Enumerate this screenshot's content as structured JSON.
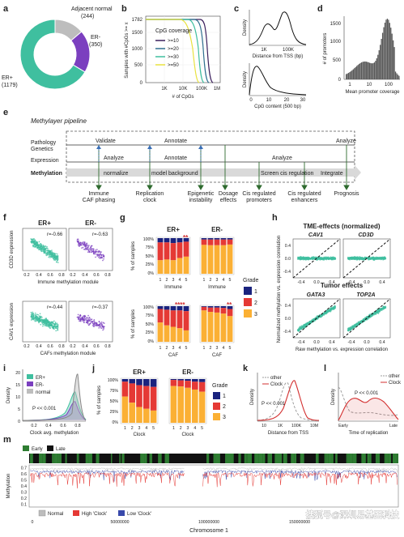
{
  "panels": {
    "a": {
      "letter": "a",
      "slices": [
        {
          "name": "Adjacent normal",
          "count": "(244)",
          "value": 244,
          "color": "#bdbdbd"
        },
        {
          "name": "ER-",
          "count": "(350)",
          "value": 350,
          "color": "#7b3fbf"
        },
        {
          "name": "ER+",
          "count": "(1179)",
          "value": 1179,
          "color": "#3fbf9f"
        }
      ]
    },
    "b": {
      "letter": "b",
      "ylabel": "Samples with #CpGs >= x",
      "xlabel": "# of CpGs",
      "yticks": [
        "1782",
        "1500",
        "1000",
        "500",
        "0"
      ],
      "xticks": [
        "1K",
        "10K",
        "100K",
        "1M"
      ],
      "legend_title": "CpG coverage",
      "legend": [
        {
          "label": ">=10",
          "color": "#3b1f5c"
        },
        {
          "label": ">=20",
          "color": "#2f6f8f"
        },
        {
          "label": ">=30",
          "color": "#3fbf9f"
        },
        {
          "label": ">=50",
          "color": "#e8e23f"
        }
      ]
    },
    "c": {
      "letter": "c",
      "top_xlabel": "Distance from TSS (bp)",
      "top_ylabel": "Density",
      "top_xticks": [
        "1K",
        "100K"
      ],
      "bottom_xlabel": "CpG content (500 bp)",
      "bottom_ylabel": "Density",
      "bottom_xticks": [
        "0",
        "10",
        "20",
        "30"
      ]
    },
    "d": {
      "letter": "d",
      "ylabel": "# of promoters",
      "xlabel": "Mean promoter coverage",
      "yticks": [
        "1500",
        "1000",
        "500",
        "0"
      ],
      "xticks": [
        "1",
        "10",
        "100"
      ]
    },
    "e": {
      "letter": "e",
      "title": "Methylayer pipeline",
      "rows": [
        "Pathology",
        "Genetics",
        "Expression",
        "Methylation"
      ],
      "top_labels": {
        "validate": "Validate",
        "annotate": "Annotate",
        "analyze": "Analyze"
      },
      "mid_labels": {
        "analyze": "Analyze",
        "annotate": "Annotate",
        "analyze2": "Analyze"
      },
      "bar_labels": [
        "normalize",
        "model background",
        "Screen cis regulation",
        "Integrate"
      ],
      "outputs": [
        "Immune\nCAF phasing",
        "Replication\nclock",
        "Epigenetic\ninstability",
        "Dosage\neffects",
        "Cis regulated\npromoters",
        "Cis regulated\nenhancers",
        "Prognosis"
      ]
    },
    "f": {
      "letter": "f",
      "col_titles": [
        "ER+",
        "ER-"
      ],
      "top_r": [
        "r=-0.66",
        "r=-0.63"
      ],
      "bottom_r": [
        "r=-0.44",
        "r=-0.37"
      ],
      "top_ylabel": "CD3D expression",
      "top_xlabel": "Immune methylation module",
      "bottom_ylabel": "CAV1 expression",
      "bottom_xlabel": "CAFs methylation module",
      "xticks": [
        "0.2",
        "0.4",
        "0.6",
        "0.8"
      ]
    },
    "g": {
      "letter": "g",
      "col_titles": [
        "ER+",
        "ER-"
      ],
      "ylabel": "% of samples",
      "yticks": [
        "100%",
        "75%",
        "50%",
        "25%",
        "0%"
      ],
      "top_xlabel": "Immune",
      "bottom_xlabel": "CAF",
      "xticks": [
        "1",
        "2",
        "3",
        "4",
        "5"
      ],
      "stars": {
        "top_er_pos": "**",
        "bottom_er_pos": "****",
        "bottom_er_neg": "**"
      },
      "legend_title": "Grade",
      "legend": [
        {
          "label": "1",
          "color": "#1a237e"
        },
        {
          "label": "2",
          "color": "#e53935"
        },
        {
          "label": "3",
          "color": "#fbb034"
        }
      ]
    },
    "h": {
      "letter": "h",
      "top_title": "TME-effects (normalized)",
      "bottom_title": "Tumor effects",
      "genes": [
        "CAV1",
        "CD3D",
        "GATA3",
        "TOP2A"
      ],
      "ylabel": "Normalized methylation vs. expression correlation",
      "xlabel": "Raw methylation vs. expression correlation",
      "ticks": [
        "-0.4",
        "0.0",
        "0.4"
      ]
    },
    "i": {
      "letter": "i",
      "ylabel": "Density",
      "xlabel": "Clock avg. methylation",
      "pvalue": "P << 0.001",
      "xticks": [
        "0.2",
        "0.4",
        "0.6",
        "0.8"
      ],
      "yticks": [
        "20",
        "15",
        "10",
        "5",
        "0"
      ],
      "legend": [
        {
          "label": "ER+",
          "color": "#3fbf9f"
        },
        {
          "label": "ER-",
          "color": "#7b3fbf"
        },
        {
          "label": "normal",
          "color": "#bdbdbd"
        }
      ]
    },
    "j": {
      "letter": "j",
      "col_titles": [
        "ER+",
        "ER-"
      ],
      "ylabel": "% of samples",
      "xlabel": "Clock",
      "yticks": [
        "100%",
        "75%",
        "50%",
        "25%",
        "0%"
      ],
      "xticks": [
        "1",
        "2",
        "3",
        "4",
        "5"
      ],
      "legend_title": "Grade",
      "legend": [
        {
          "label": "1",
          "color": "#1a237e"
        },
        {
          "label": "2",
          "color": "#e53935"
        },
        {
          "label": "3",
          "color": "#fbb034"
        }
      ]
    },
    "k": {
      "letter": "k",
      "ylabel": "Density",
      "xlabel": "Distance from TSS",
      "pvalue": "P << 0.001",
      "xticks": [
        "10",
        "1K",
        "100K",
        "10M"
      ],
      "legend": [
        {
          "label": "other",
          "color": "#9e9e9e"
        },
        {
          "label": "Clock",
          "color": "#d32f2f"
        }
      ]
    },
    "l": {
      "letter": "l",
      "ylabel": "Density",
      "xlabel": "Time of replication",
      "pvalue": "P << 0.001",
      "xticks": [
        "Early",
        "Late"
      ],
      "legend": [
        {
          "label": "other",
          "color": "#9e9e9e"
        },
        {
          "label": "Clock",
          "color": "#d32f2f"
        }
      ]
    },
    "m": {
      "letter": "m",
      "top_legend": [
        {
          "label": "Early",
          "color": "#2e7d32"
        },
        {
          "label": "Late",
          "color": "#111111"
        }
      ],
      "ylabel": "Methylation",
      "yticks": [
        "0.7",
        "0.6",
        "0.5",
        "0.4",
        "0.3",
        "0.2",
        "0.1"
      ],
      "xlabel": "Chromosome 1",
      "xticks": [
        "0",
        "50000000",
        "100000000",
        "150000000"
      ],
      "legend": [
        {
          "label": "Normal",
          "color": "#bdbdbd"
        },
        {
          "label": "High 'Clock'",
          "color": "#e53935"
        },
        {
          "label": "Low 'Clock'",
          "color": "#3949ab"
        }
      ]
    }
  },
  "watermark": "搜狐号@深圳易基因科技"
}
